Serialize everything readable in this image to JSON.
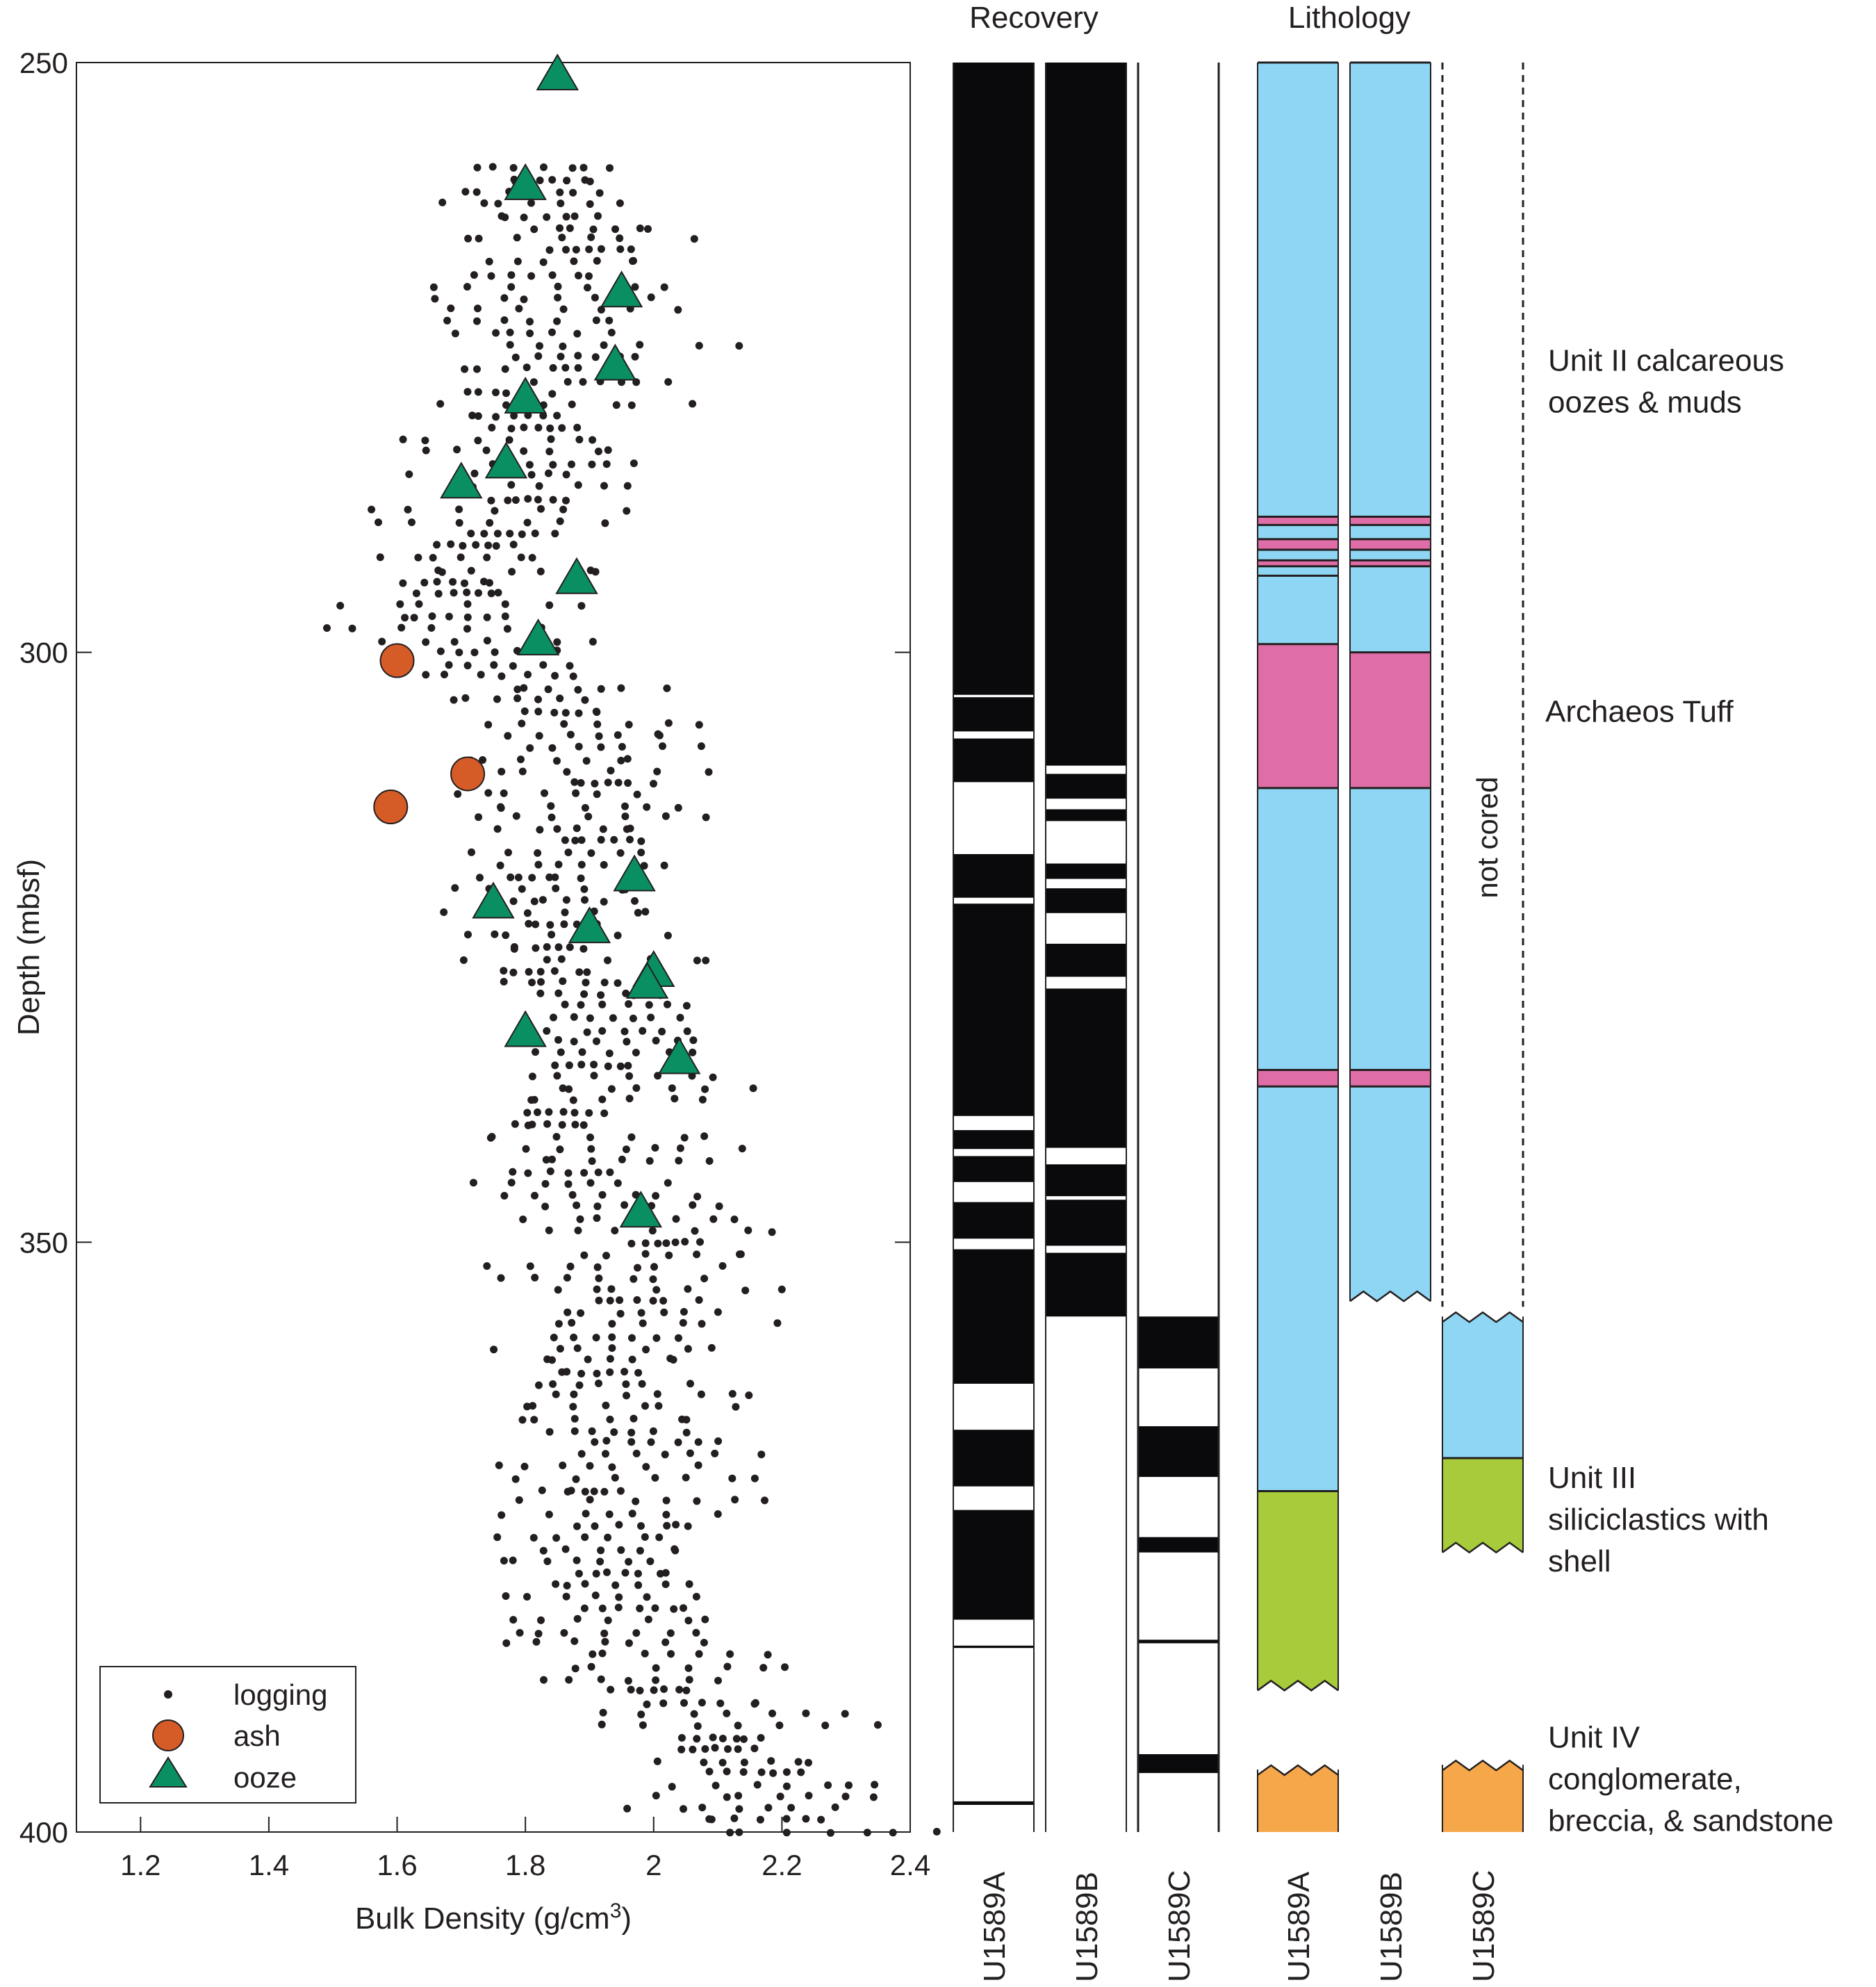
{
  "chart_data": [
    {
      "type": "scatter",
      "title": "",
      "xlabel": "Bulk Density (g/cm",
      "xlabel_sup": "3",
      "xlabel_tail": ")",
      "ylabel": "Depth (mbsf)",
      "xlim": [
        1.1,
        2.4
      ],
      "ylim": [
        250,
        400
      ],
      "y_reversed": true,
      "x_ticks": [
        "1.2",
        "1.4",
        "1.6",
        "1.8",
        "2",
        "2.2",
        "2.4"
      ],
      "y_ticks": [
        "250",
        "300",
        "350",
        "400"
      ],
      "grid": false,
      "legend_position": "bottom-left",
      "series": [
        {
          "name": "logging",
          "marker": "dot",
          "color": "#231f20",
          "note": "dense profile; points read at ~1 m interval with lateral scatter",
          "depth_trend": [
            [
              259,
              1.82
            ],
            [
              262,
              1.86
            ],
            [
              266,
              1.9
            ],
            [
              270,
              1.85
            ],
            [
              274,
              1.88
            ],
            [
              278,
              1.84
            ],
            [
              282,
              1.83
            ],
            [
              286,
              1.8
            ],
            [
              290,
              1.78
            ],
            [
              294,
              1.74
            ],
            [
              298,
              1.72
            ],
            [
              302,
              1.8
            ],
            [
              306,
              1.86
            ],
            [
              310,
              1.9
            ],
            [
              314,
              1.88
            ],
            [
              318,
              1.86
            ],
            [
              322,
              1.84
            ],
            [
              326,
              1.86
            ],
            [
              330,
              1.9
            ],
            [
              334,
              1.92
            ],
            [
              338,
              1.9
            ],
            [
              342,
              1.9
            ],
            [
              346,
              1.94
            ],
            [
              350,
              1.96
            ],
            [
              354,
              1.94
            ],
            [
              358,
              1.96
            ],
            [
              362,
              1.96
            ],
            [
              366,
              1.95
            ],
            [
              370,
              1.96
            ],
            [
              374,
              1.95
            ],
            [
              378,
              1.94
            ],
            [
              382,
              1.98
            ],
            [
              386,
              2.0
            ],
            [
              390,
              2.06
            ],
            [
              394,
              2.12
            ],
            [
              398,
              2.2
            ],
            [
              400,
              2.22
            ]
          ]
        },
        {
          "name": "ash",
          "marker": "circle",
          "color": "#d55b27",
          "points": [
            [
              1.6,
              300.7
            ],
            [
              1.71,
              310.3
            ],
            [
              1.59,
              313.1
            ]
          ]
        },
        {
          "name": "ooze",
          "marker": "triangle",
          "color": "#0a8f63",
          "points": [
            [
              1.85,
              251.0
            ],
            [
              1.8,
              260.3
            ],
            [
              1.95,
              269.4
            ],
            [
              1.94,
              275.6
            ],
            [
              1.8,
              278.4
            ],
            [
              1.77,
              283.9
            ],
            [
              1.7,
              285.6
            ],
            [
              1.88,
              293.7
            ],
            [
              1.82,
              298.9
            ],
            [
              1.97,
              318.9
            ],
            [
              1.75,
              321.2
            ],
            [
              1.9,
              323.3
            ],
            [
              2.0,
              327.0
            ],
            [
              1.99,
              328.0
            ],
            [
              1.8,
              332.1
            ],
            [
              2.04,
              334.4
            ],
            [
              1.98,
              347.4
            ]
          ]
        }
      ]
    },
    {
      "type": "table",
      "name": "Recovery",
      "title": "Recovery",
      "depth_axis": [
        250,
        400
      ],
      "columns": [
        {
          "label": "U1589A",
          "recovered_intervals": [
            [
              250,
              303.6
            ],
            [
              303.8,
              306.7
            ],
            [
              307.3,
              311.0
            ],
            [
              317.1,
              320.8
            ],
            [
              321.3,
              339.3
            ],
            [
              340.5,
              342.1
            ],
            [
              342.7,
              344.9
            ],
            [
              346.6,
              349.7
            ],
            [
              350.6,
              362.0
            ],
            [
              365.9,
              370.7
            ],
            [
              372.7,
              382.0
            ],
            [
              397.4,
              397.7
            ],
            [
              384.2,
              384.4
            ]
          ]
        },
        {
          "label": "U1589B",
          "recovered_intervals": [
            [
              250,
              309.6
            ],
            [
              310.3,
              312.4
            ],
            [
              313.3,
              314.3
            ],
            [
              317.9,
              319.2
            ],
            [
              320.0,
              322.1
            ],
            [
              324.7,
              327.5
            ],
            [
              328.5,
              342.0
            ],
            [
              343.4,
              346.1
            ],
            [
              346.4,
              350.3
            ],
            [
              350.9,
              356.3
            ]
          ]
        },
        {
          "label": "U1589C",
          "cored_from": 356.3,
          "recovered_intervals": [
            [
              356.3,
              360.7
            ],
            [
              365.6,
              369.9
            ],
            [
              375.0,
              376.3
            ],
            [
              383.7,
              384.0
            ],
            [
              393.4,
              395.0
            ]
          ]
        }
      ]
    },
    {
      "type": "table",
      "name": "Lithology",
      "title": "Lithology",
      "colors": {
        "calcareous": "#8ed6f4",
        "tuff": "#df6da7",
        "siliciclastic": "#a7cb3a",
        "conglomerate": "#f6a74a"
      },
      "columns": [
        {
          "label": "U1589A",
          "intervals": [
            [
              250,
              288.5,
              "calcareous"
            ],
            [
              288.5,
              289.2,
              "tuff"
            ],
            [
              289.2,
              290.4,
              "calcareous"
            ],
            [
              290.4,
              291.3,
              "tuff"
            ],
            [
              291.3,
              292.2,
              "calcareous"
            ],
            [
              292.2,
              292.7,
              "tuff"
            ],
            [
              292.7,
              293.5,
              "calcareous"
            ],
            [
              293.5,
              299.3,
              "calcareous"
            ],
            [
              299.3,
              311.5,
              "tuff"
            ],
            [
              311.5,
              335.4,
              "calcareous"
            ],
            [
              335.4,
              336.8,
              "tuff"
            ],
            [
              336.8,
              371.1,
              "calcareous"
            ],
            [
              371.1,
              388.0,
              "siliciclastic"
            ],
            [
              394.7,
              400,
              "conglomerate"
            ]
          ]
        },
        {
          "label": "U1589B",
          "intervals": [
            [
              250,
              288.5,
              "calcareous"
            ],
            [
              288.5,
              289.2,
              "tuff"
            ],
            [
              289.2,
              290.4,
              "calcareous"
            ],
            [
              290.4,
              291.3,
              "tuff"
            ],
            [
              291.3,
              292.2,
              "calcareous"
            ],
            [
              292.2,
              292.7,
              "tuff"
            ],
            [
              292.7,
              300.0,
              "calcareous"
            ],
            [
              300.0,
              311.5,
              "tuff"
            ],
            [
              311.5,
              335.4,
              "calcareous"
            ],
            [
              335.4,
              336.8,
              "tuff"
            ],
            [
              336.8,
              355.0,
              "calcareous"
            ]
          ]
        },
        {
          "label": "U1589C",
          "not_cored_label": "not cored",
          "not_cored_interval": [
            250,
            356.3
          ],
          "intervals": [
            [
              356.3,
              368.3,
              "calcareous"
            ],
            [
              368.3,
              376.3,
              "siliciclastic"
            ],
            [
              394.3,
              400,
              "conglomerate"
            ]
          ]
        }
      ],
      "annotations": [
        {
          "id": "unit-ii",
          "lines": [
            "Unit II calcareous",
            "oozes & muds"
          ],
          "depth": 277
        },
        {
          "id": "archaeos",
          "lines": [
            "Archaeos Tuff"
          ],
          "depth": 305
        },
        {
          "id": "unit-iii",
          "lines": [
            "Unit III",
            "siliciclastics with",
            "shell"
          ],
          "depth": 373.5
        },
        {
          "id": "unit-iv",
          "lines": [
            "Unit IV",
            "conglomerate,",
            "breccia, & sandstone"
          ],
          "depth": 395.5
        }
      ]
    }
  ]
}
